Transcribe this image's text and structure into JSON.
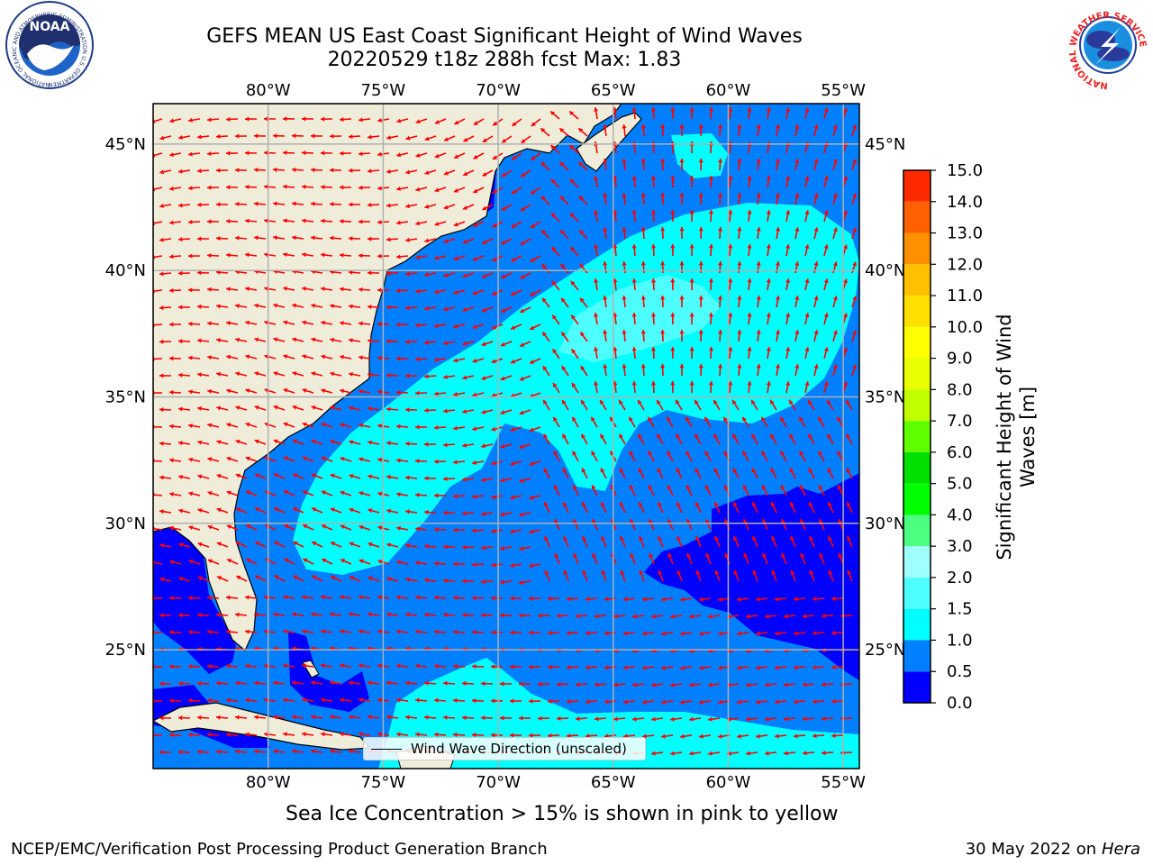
{
  "title": {
    "line1": "GEFS MEAN US East Coast Significant Height of Wind Waves",
    "line2": "20220529 t18z 288h fcst   Max: 1.83"
  },
  "logos": {
    "left": {
      "name": "NOAA",
      "ring_text": "NATIONAL OCEANIC AND ATMOSPHERIC ADMINISTRATION  U.S. DEPARTMENT OF COMMERCE"
    },
    "right": {
      "ring_text": "NATIONAL WEATHER SERVICE"
    }
  },
  "map": {
    "lon_labels": [
      "80°W",
      "75°W",
      "70°W",
      "65°W",
      "60°W",
      "55°W"
    ],
    "lat_labels": [
      "45°N",
      "40°N",
      "35°N",
      "30°N",
      "25°N"
    ],
    "lon_values": [
      -80,
      -75,
      -70,
      -65,
      -60,
      -55
    ],
    "lat_values": [
      45,
      40,
      35,
      30,
      25
    ],
    "extent": {
      "lon": [
        -85,
        -54.3
      ],
      "lat": [
        20.3,
        46.6
      ]
    },
    "grid": true,
    "colors": {
      "land": "#efedda",
      "coast": "#000000",
      "arrow": "#ff0000",
      "grid": "#b0b0b0"
    }
  },
  "legend": {
    "label": "Wind Wave Direction (unscaled)"
  },
  "colorbar": {
    "title": [
      "Significant Height of Wind",
      "Waves [m]"
    ],
    "levels": [
      "0.0",
      "0.5",
      "1.0",
      "1.5",
      "2.0",
      "3.0",
      "4.0",
      "5.0",
      "6.0",
      "7.0",
      "8.0",
      "9.0",
      "10.0",
      "11.0",
      "12.0",
      "13.0",
      "14.0",
      "15.0"
    ],
    "colors": [
      "#0000ff",
      "#0080ff",
      "#00ffff",
      "#4dffff",
      "#a0ffff",
      "#4dff80",
      "#00ff00",
      "#00e000",
      "#60ff00",
      "#c0ff00",
      "#e8ff00",
      "#ffff00",
      "#ffe000",
      "#ffc000",
      "#ff9000",
      "#ff6000",
      "#ff2a00"
    ]
  },
  "note": "Sea Ice Concentration > 15% is shown in pink to yellow",
  "footer": {
    "left": "NCEP/EMC/Verification Post Processing Product Generation Branch",
    "right_date": "30 May 2022 on",
    "right_machine": "Hera"
  }
}
